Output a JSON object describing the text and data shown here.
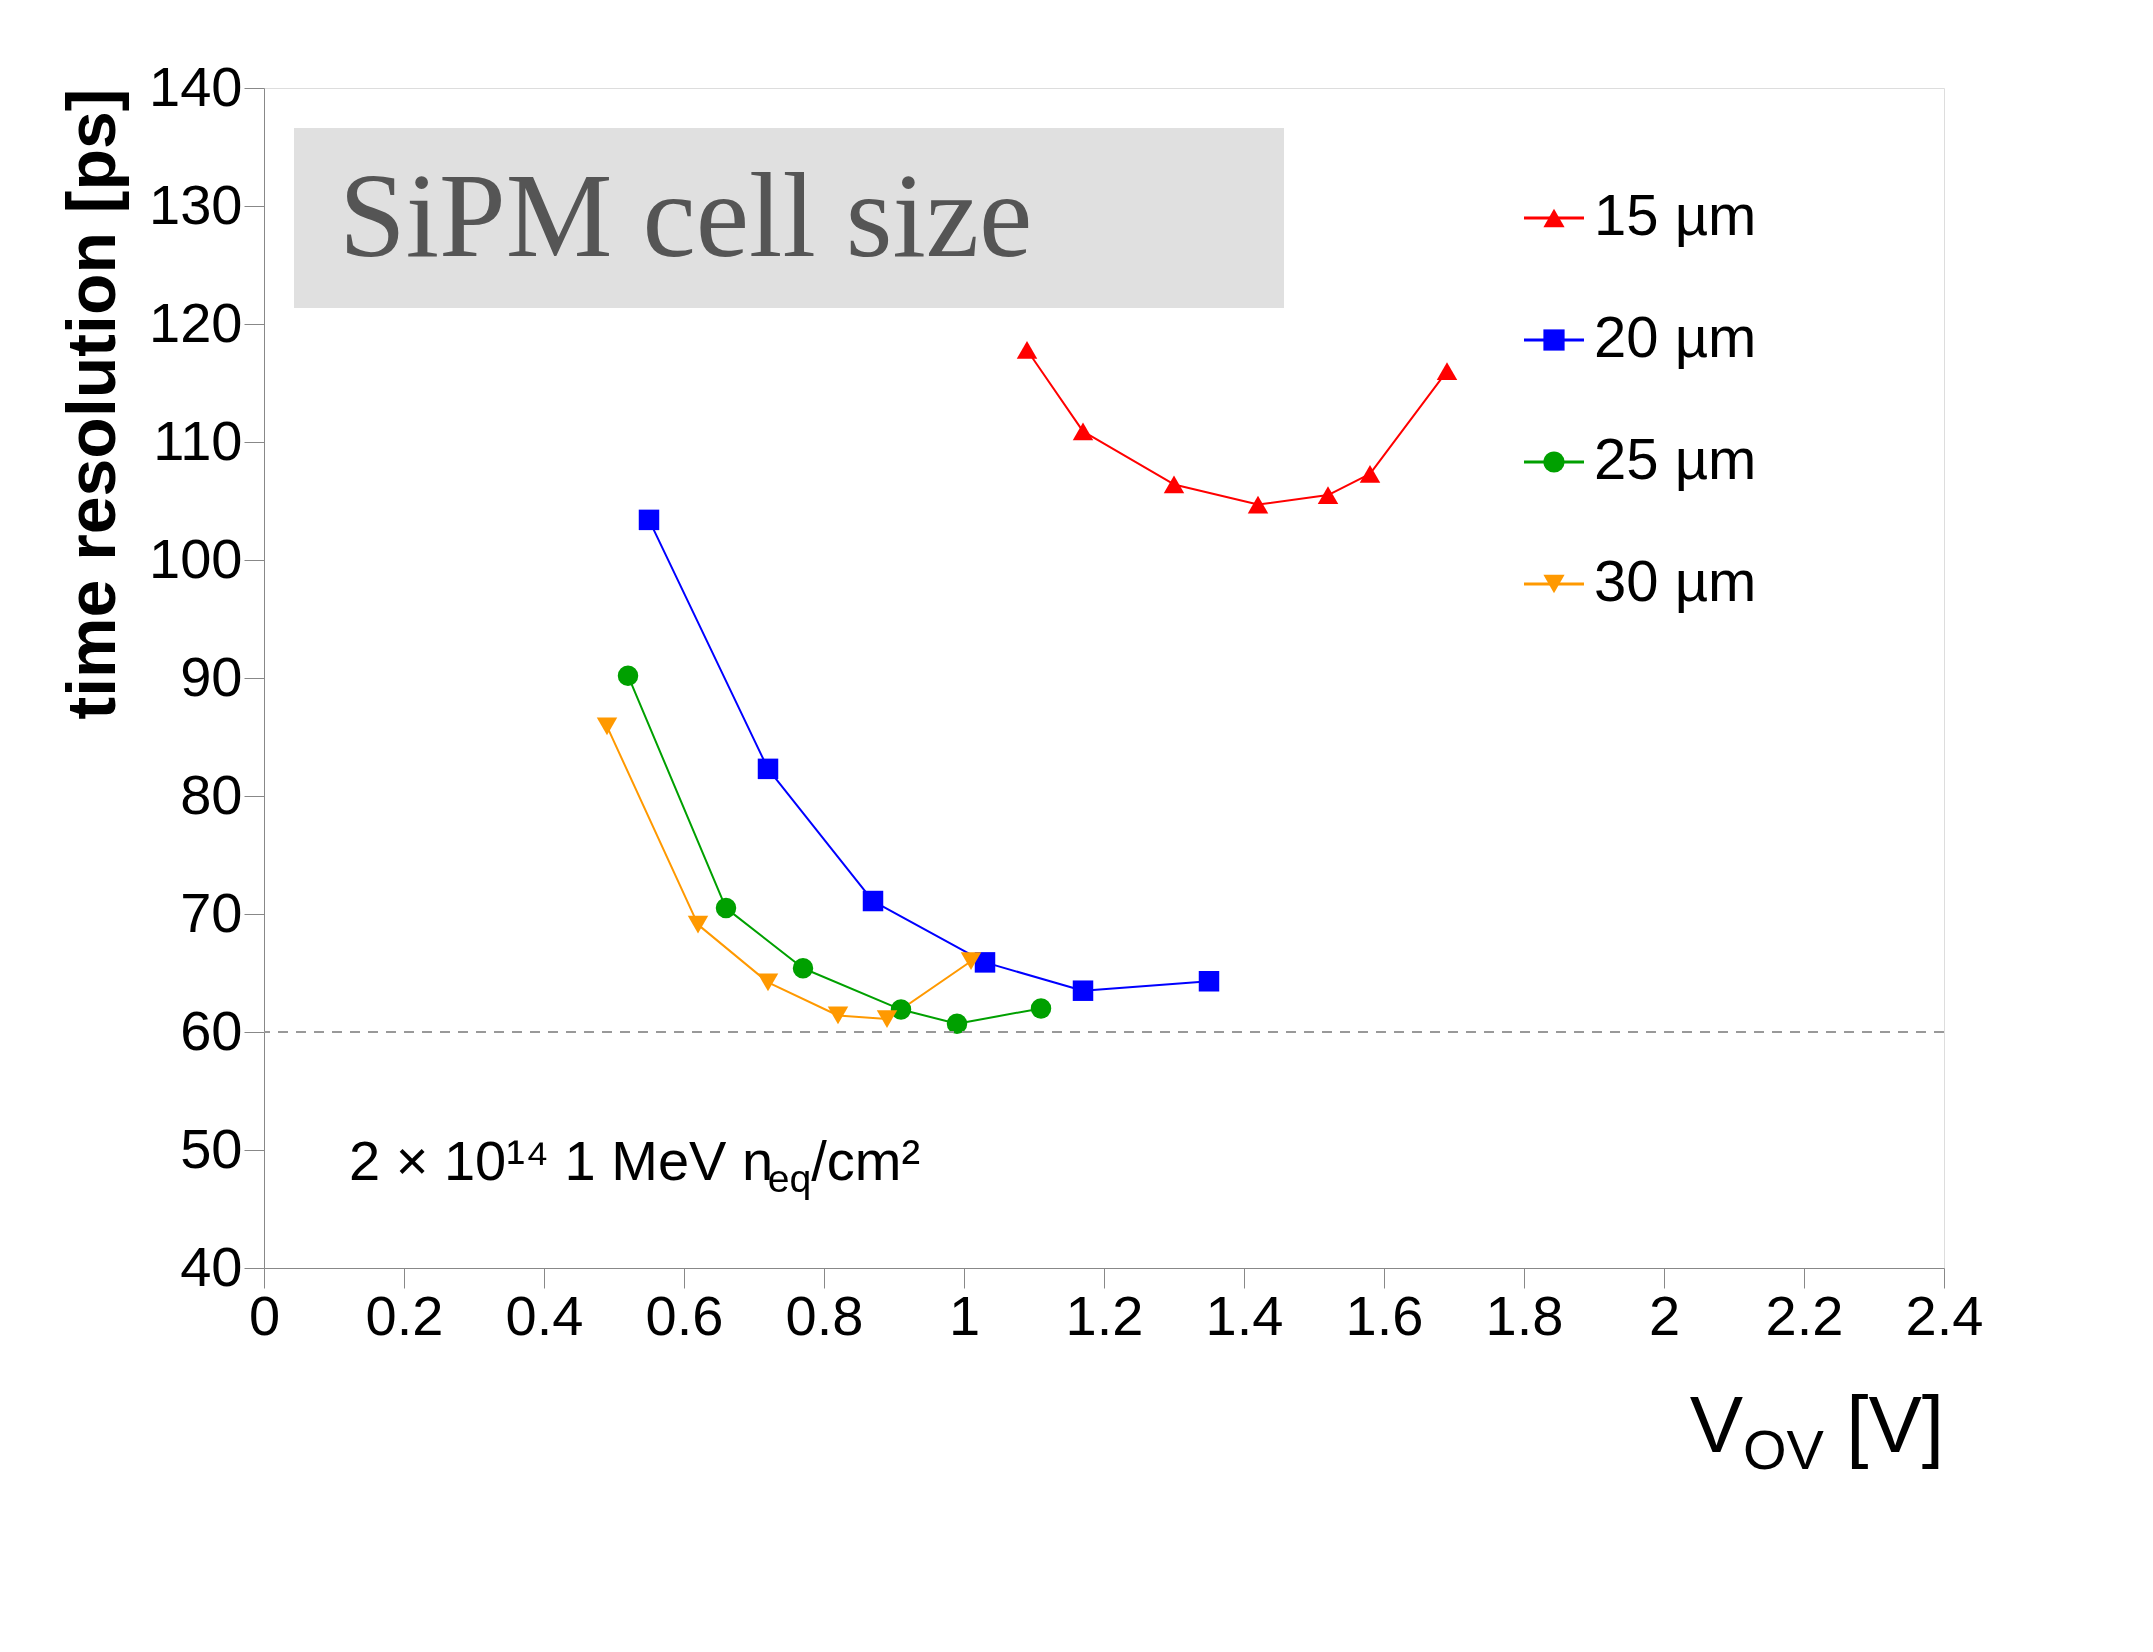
{
  "chart_data": {
    "type": "line",
    "xlabel": "V$_{OV}$ [V]",
    "ylabel": "time resolution [ps]",
    "xlim": [
      0,
      2.4
    ],
    "xticks": [
      0,
      0.2,
      0.4,
      0.6,
      0.8,
      1,
      1.2,
      1.4,
      1.6,
      1.8,
      2,
      2.2,
      2.4
    ],
    "ylim": [
      40,
      140
    ],
    "yticks": [
      40,
      50,
      60,
      70,
      80,
      90,
      100,
      110,
      120,
      130,
      140
    ],
    "grid": false,
    "legend": "top right",
    "series": [
      {
        "name": "15 µm",
        "color": "#ff0000",
        "marker": "triangle",
        "x": [
          1.09,
          1.17,
          1.3,
          1.42,
          1.52,
          1.58,
          1.69
        ],
        "values": [
          117.8,
          110.9,
          106.4,
          104.7,
          105.5,
          107.3,
          116.0
        ]
      },
      {
        "name": "20 µm",
        "color": "#0000ff",
        "marker": "square",
        "x": [
          0.55,
          0.72,
          0.87,
          1.03,
          1.17,
          1.35
        ],
        "values": [
          103.4,
          82.3,
          71.1,
          65.9,
          63.5,
          64.3
        ]
      },
      {
        "name": "25 µm",
        "color": "#00a000",
        "marker": "circle",
        "x": [
          0.52,
          0.66,
          0.77,
          0.91,
          0.99,
          1.11
        ],
        "values": [
          90.2,
          70.5,
          65.4,
          61.9,
          60.7,
          62.0
        ]
      },
      {
        "name": "30 µm",
        "color": "#ff9900",
        "marker": "triangle-down",
        "x": [
          0.49,
          0.62,
          0.72,
          0.82,
          0.89,
          1.01
        ],
        "values": [
          85.9,
          69.1,
          64.2,
          61.4,
          61.1,
          66.0
        ]
      }
    ],
    "ref_lines": [
      {
        "axis": "y",
        "value": 60,
        "color": "#999999",
        "line_style": "dashed"
      }
    ],
    "annotations": [
      "SiPM cell size",
      "2 × 10¹⁴ 1 MeV n$_{eq}$/cm²"
    ]
  }
}
